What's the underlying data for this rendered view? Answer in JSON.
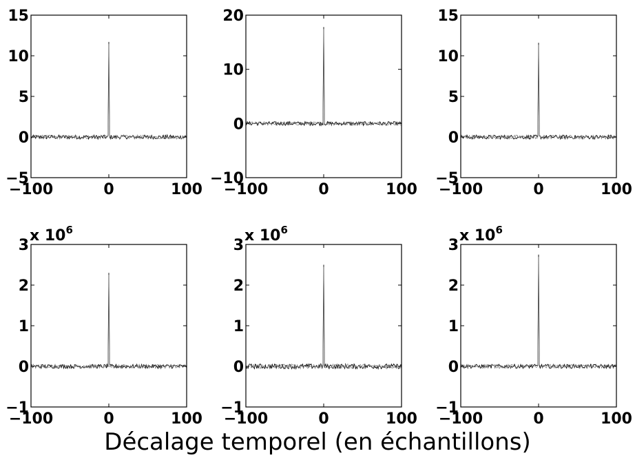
{
  "xlabel": "Décalage temporel (en échantillons)",
  "chart_data": [
    {
      "type": "line",
      "row": 0,
      "col": 0,
      "xlim": [
        -100,
        100
      ],
      "ylim": [
        -5,
        15
      ],
      "xticks": [
        -100,
        0,
        100
      ],
      "xtick_labels": [
        "−100",
        "0",
        "100"
      ],
      "yticks": [
        -5,
        0,
        5,
        10,
        15
      ],
      "ytick_labels": [
        "−5",
        "0",
        "5",
        "10",
        "15"
      ],
      "multiplier": "",
      "peak": {
        "x": 0,
        "y": 11.7
      },
      "noise_amplitude": 0.25,
      "series": [
        {
          "values": "noise around 0 with peak at lag 0"
        }
      ]
    },
    {
      "type": "line",
      "row": 0,
      "col": 1,
      "xlim": [
        -100,
        100
      ],
      "ylim": [
        -10,
        20
      ],
      "xticks": [
        -100,
        0,
        100
      ],
      "xtick_labels": [
        "−100",
        "0",
        "100"
      ],
      "yticks": [
        -10,
        0,
        10,
        20
      ],
      "ytick_labels": [
        "−10",
        "0",
        "10",
        "20"
      ],
      "multiplier": "",
      "peak": {
        "x": 0,
        "y": 17.8
      },
      "noise_amplitude": 0.35,
      "series": [
        {
          "values": "noise around 0 with peak at lag 0"
        }
      ]
    },
    {
      "type": "line",
      "row": 0,
      "col": 2,
      "xlim": [
        -100,
        100
      ],
      "ylim": [
        -5,
        15
      ],
      "xticks": [
        -100,
        0,
        100
      ],
      "xtick_labels": [
        "−100",
        "0",
        "100"
      ],
      "yticks": [
        -5,
        0,
        5,
        10,
        15
      ],
      "ytick_labels": [
        "−5",
        "0",
        "5",
        "10",
        "15"
      ],
      "multiplier": "",
      "peak": {
        "x": 0,
        "y": 11.6
      },
      "noise_amplitude": 0.25,
      "series": [
        {
          "values": "noise around 0 with peak at lag 0"
        }
      ]
    },
    {
      "type": "line",
      "row": 1,
      "col": 0,
      "xlim": [
        -100,
        100
      ],
      "ylim": [
        -1,
        3
      ],
      "xticks": [
        -100,
        0,
        100
      ],
      "xtick_labels": [
        "−100",
        "0",
        "100"
      ],
      "yticks": [
        -1,
        0,
        1,
        2,
        3
      ],
      "ytick_labels": [
        "−1",
        "0",
        "1",
        "2",
        "3"
      ],
      "multiplier": "x 10",
      "multiplier_exp": "6",
      "peak": {
        "x": 0,
        "y": 2.3
      },
      "noise_amplitude": 0.05,
      "series": [
        {
          "values": "noise around 0 with peak at lag 0"
        }
      ]
    },
    {
      "type": "line",
      "row": 1,
      "col": 1,
      "xlim": [
        -100,
        100
      ],
      "ylim": [
        -1,
        3
      ],
      "xticks": [
        -100,
        0,
        100
      ],
      "xtick_labels": [
        "−100",
        "0",
        "100"
      ],
      "yticks": [
        -1,
        0,
        1,
        2,
        3
      ],
      "ytick_labels": [
        "−1",
        "0",
        "1",
        "2",
        "3"
      ],
      "multiplier": "x 10",
      "multiplier_exp": "6",
      "peak": {
        "x": 0,
        "y": 2.5
      },
      "noise_amplitude": 0.06,
      "series": [
        {
          "values": "noise around 0 with peak at lag 0"
        }
      ]
    },
    {
      "type": "line",
      "row": 1,
      "col": 2,
      "xlim": [
        -100,
        100
      ],
      "ylim": [
        -1,
        3
      ],
      "xticks": [
        -100,
        0,
        100
      ],
      "xtick_labels": [
        "−100",
        "0",
        "100"
      ],
      "yticks": [
        -1,
        0,
        1,
        2,
        3
      ],
      "ytick_labels": [
        "−1",
        "0",
        "1",
        "2",
        "3"
      ],
      "multiplier": "x 10",
      "multiplier_exp": "6",
      "peak": {
        "x": 0,
        "y": 2.75
      },
      "noise_amplitude": 0.05,
      "series": [
        {
          "values": "noise around 0 with peak at lag 0"
        }
      ]
    }
  ]
}
